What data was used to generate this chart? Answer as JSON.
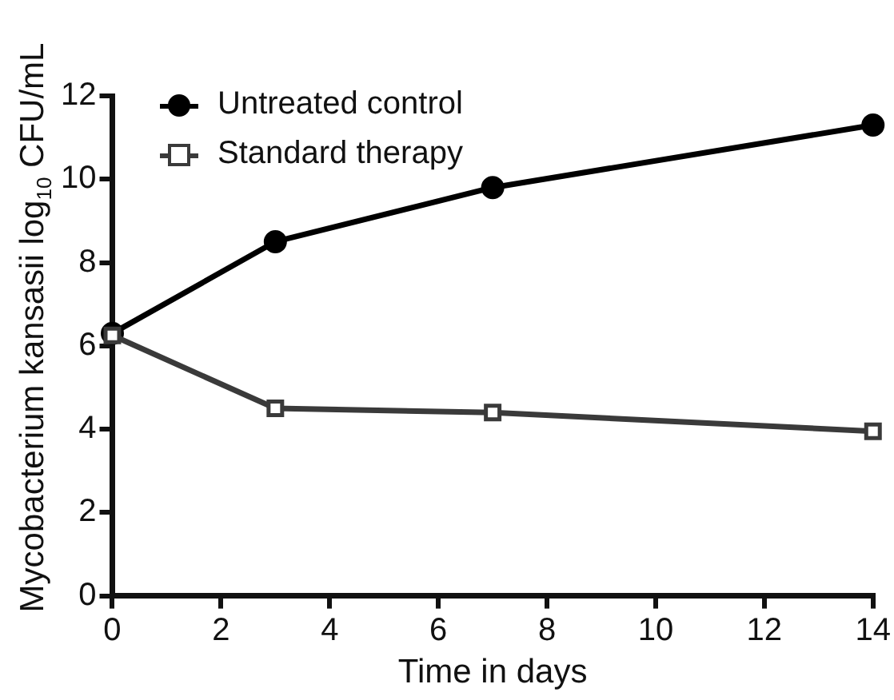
{
  "chart_data": {
    "type": "line",
    "xlabel": "Time in days",
    "ylabel": "Mycobacterium kansasii log$_{10}$ CFU/mL",
    "x": [
      0,
      3,
      7,
      14
    ],
    "series": [
      {
        "name": "Untreated control",
        "color": "#000000",
        "marker": "circle",
        "values": [
          6.3,
          8.5,
          9.8,
          11.3
        ]
      },
      {
        "name": "Standard therapy",
        "color": "#3a3a3a",
        "marker": "square",
        "values": [
          6.25,
          4.5,
          4.4,
          3.95
        ]
      }
    ],
    "xlim": [
      0,
      14
    ],
    "xticks": [
      0,
      2,
      4,
      6,
      8,
      10,
      12,
      14
    ],
    "ylim": [
      0,
      12
    ],
    "yticks": [
      0,
      2,
      4,
      6,
      8,
      10,
      12
    ],
    "grid": false,
    "legend": "top left",
    "line_style": "solid"
  }
}
